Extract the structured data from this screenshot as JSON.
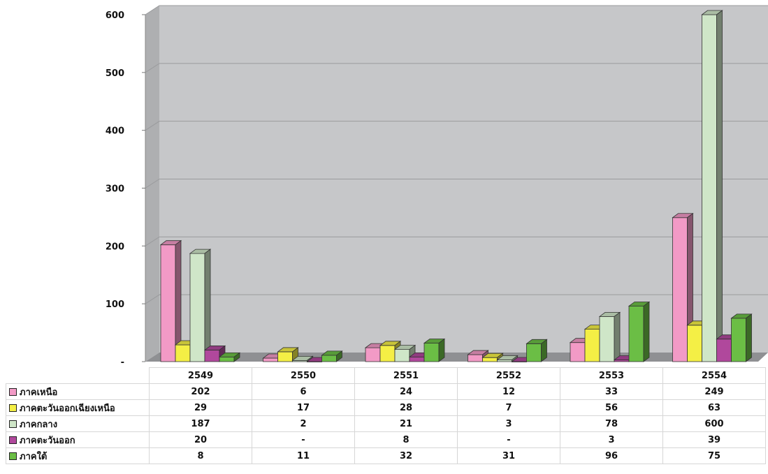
{
  "chart_data": {
    "type": "bar",
    "categories": [
      "2549",
      "2550",
      "2551",
      "2552",
      "2553",
      "2554"
    ],
    "series": [
      {
        "name": "ภาคเหนือ",
        "color": "#f29ac6",
        "values": [
          202,
          6,
          24,
          12,
          33,
          249
        ],
        "display": [
          "202",
          "6",
          "24",
          "12",
          "33",
          "249"
        ]
      },
      {
        "name": "ภาคตะวันออกเฉียงเหนือ",
        "color": "#f4ef45",
        "values": [
          29,
          17,
          28,
          7,
          56,
          63
        ],
        "display": [
          "29",
          "17",
          "28",
          "7",
          "56",
          "63"
        ]
      },
      {
        "name": "ภาคกลาง",
        "color": "#cfe6c8",
        "values": [
          187,
          2,
          21,
          3,
          78,
          600
        ],
        "display": [
          "187",
          "2",
          "21",
          "3",
          "78",
          "600"
        ]
      },
      {
        "name": "ภาคตะวันออก",
        "color": "#b0489c",
        "values": [
          20,
          0,
          8,
          0,
          3,
          39
        ],
        "display": [
          "20",
          "-",
          "8",
          "-",
          "3",
          "39"
        ]
      },
      {
        "name": "ภาคใต้",
        "color": "#6bbe45",
        "values": [
          8,
          11,
          32,
          31,
          96,
          75
        ],
        "display": [
          "8",
          "11",
          "32",
          "31",
          "96",
          "75"
        ]
      }
    ],
    "y_ticks": [
      "-",
      "100",
      "200",
      "300",
      "400",
      "500",
      "600"
    ],
    "ylim": [
      0,
      600
    ],
    "grid": true,
    "legend": "data table below the chart"
  }
}
